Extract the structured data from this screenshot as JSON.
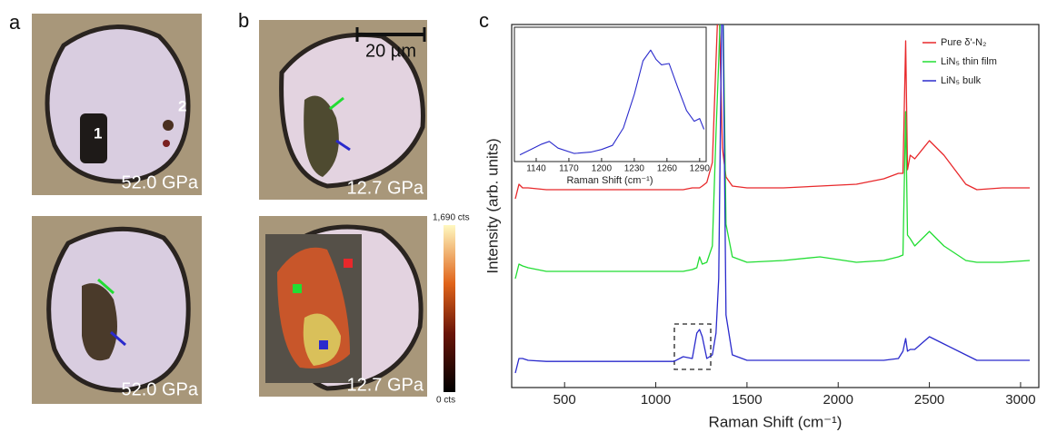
{
  "panels": {
    "a": {
      "label": "a",
      "top": {
        "markers": [
          "1",
          "2"
        ],
        "pressure": "52.0 GPa"
      },
      "bottom": {
        "pressure": "52.0 GPa"
      }
    },
    "b": {
      "label": "b",
      "top": {
        "scale_bar": "20 µm",
        "pressure": "12.7 GPa"
      },
      "bottom": {
        "pressure": "12.7 GPa",
        "colorbar": {
          "max": "1,690 cts",
          "min": "0 cts"
        }
      }
    },
    "c": {
      "label": "c"
    }
  },
  "chart_data": [
    {
      "type": "line",
      "xlabel": "Raman Shift (cm⁻¹)",
      "ylabel": "Intensity (arb. units)",
      "x": [
        230,
        250,
        270,
        300,
        400,
        600,
        800,
        1000,
        1100,
        1150,
        1200,
        1225,
        1240,
        1255,
        1280,
        1310,
        1330,
        1345,
        1365,
        1385,
        1420,
        1500,
        1700,
        1900,
        2100,
        2250,
        2330,
        2355,
        2370,
        2380,
        2395,
        2420,
        2500,
        2580,
        2700,
        2760,
        2900,
        3050
      ],
      "series": [
        {
          "name": "Pure δ'-N₂",
          "color": "#e8282b",
          "values": [
            5.2,
            5.6,
            5.5,
            5.5,
            5.45,
            5.45,
            5.45,
            5.45,
            5.45,
            5.45,
            5.5,
            5.5,
            5.5,
            5.55,
            5.65,
            6.2,
            9,
            11,
            6.6,
            5.8,
            5.55,
            5.5,
            5.5,
            5.55,
            5.6,
            5.75,
            5.9,
            5.9,
            9.55,
            6.0,
            6.4,
            6.3,
            6.8,
            6.4,
            5.6,
            5.45,
            5.5,
            5.5
          ]
        },
        {
          "name": "LiN₅ thin film",
          "color": "#22dd33",
          "values": [
            3.0,
            3.4,
            3.35,
            3.3,
            3.2,
            3.2,
            3.2,
            3.2,
            3.2,
            3.2,
            3.25,
            3.3,
            3.6,
            3.4,
            3.45,
            3.9,
            7,
            9,
            12,
            4.5,
            3.6,
            3.45,
            3.5,
            3.6,
            3.45,
            3.5,
            3.6,
            3.65,
            7.6,
            4.2,
            4.1,
            3.9,
            4.3,
            3.9,
            3.5,
            3.45,
            3.45,
            3.5
          ]
        },
        {
          "name": "LiN₅ bulk",
          "color": "#2a2acc",
          "values": [
            0.4,
            0.8,
            0.8,
            0.75,
            0.72,
            0.72,
            0.72,
            0.72,
            0.72,
            0.85,
            0.8,
            1.5,
            1.6,
            1.4,
            0.8,
            0.9,
            1.5,
            3,
            12,
            2,
            0.9,
            0.75,
            0.75,
            0.75,
            0.75,
            0.75,
            0.8,
            1.0,
            1.35,
            1.0,
            1.05,
            1.05,
            1.4,
            1.2,
            0.9,
            0.75,
            0.75,
            0.75
          ]
        }
      ],
      "xlim": [
        210,
        3100
      ],
      "xticks": [
        500,
        1000,
        1500,
        2000,
        2500,
        3000
      ],
      "ylim": [
        0,
        10
      ],
      "legend": "upper right"
    },
    {
      "type": "line",
      "xlabel": "Raman Shift (cm⁻¹)",
      "x": [
        1125,
        1135,
        1145,
        1152,
        1160,
        1175,
        1190,
        1200,
        1210,
        1220,
        1230,
        1238,
        1245,
        1250,
        1255,
        1262,
        1270,
        1278,
        1285,
        1290,
        1294
      ],
      "series": [
        {
          "color": "#2a2acc",
          "values": [
            0.5,
            0.9,
            1.3,
            1.5,
            1.0,
            0.6,
            0.7,
            0.9,
            1.2,
            2.5,
            5,
            7.5,
            8.3,
            7.6,
            7.2,
            7.3,
            5.5,
            3.8,
            3.0,
            3.2,
            2.4
          ]
        }
      ],
      "xlim": [
        1120,
        1296
      ],
      "xticks": [
        1140,
        1170,
        1200,
        1230,
        1260,
        1290
      ],
      "ylim": [
        0,
        10
      ]
    }
  ]
}
